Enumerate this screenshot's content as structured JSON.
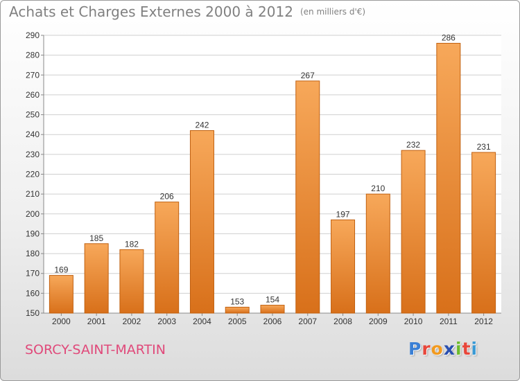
{
  "header": {
    "title": "Achats et Charges Externes 2000 à 2012",
    "unit": "(en milliers d'€)"
  },
  "place": "SORCY-SAINT-MARTIN",
  "logo": {
    "text": "Proxiti",
    "letters": [
      {
        "char": "P",
        "color": "#3a7fd5"
      },
      {
        "char": "r",
        "color": "#e8463a"
      },
      {
        "char": "o",
        "color": "#f29a1f"
      },
      {
        "char": "x",
        "color": "#2a4fb0"
      },
      {
        "char": "i",
        "color": "#6dbb2e"
      },
      {
        "char": "t",
        "color": "#e8463a"
      },
      {
        "char": "i",
        "color": "#3a9ad5"
      }
    ]
  },
  "colors": {
    "bar_top": "#f7a85a",
    "bar_bottom": "#d8701a",
    "bar_stroke": "#c06010",
    "grid": "#cfcfcf",
    "text": "#333333"
  },
  "chart_data": {
    "type": "bar",
    "categories": [
      "2000",
      "2001",
      "2002",
      "2003",
      "2004",
      "2005",
      "2006",
      "2007",
      "2008",
      "2009",
      "2010",
      "2011",
      "2012"
    ],
    "values": [
      169,
      185,
      182,
      206,
      242,
      153,
      154,
      267,
      197,
      210,
      232,
      286,
      231
    ],
    "title": "Achats et Charges Externes 2000 à 2012",
    "subtitle": "(en milliers d'€)",
    "ylim": [
      150,
      290
    ],
    "yticks": [
      150,
      160,
      170,
      180,
      190,
      200,
      210,
      220,
      230,
      240,
      250,
      260,
      270,
      280,
      290
    ],
    "grid": true,
    "legend": "none"
  }
}
